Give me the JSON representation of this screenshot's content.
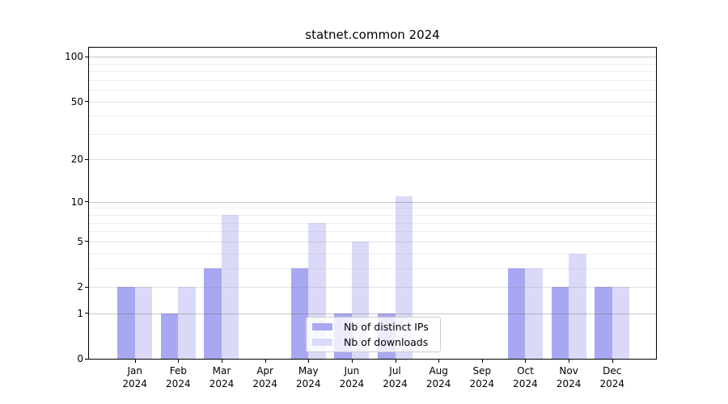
{
  "title": "statnet.common 2024",
  "chart_data": {
    "type": "bar",
    "title": "statnet.common 2024",
    "x_axis": {
      "months": [
        "Jan",
        "Feb",
        "Mar",
        "Apr",
        "May",
        "Jun",
        "Jul",
        "Aug",
        "Sep",
        "Oct",
        "Nov",
        "Dec"
      ],
      "year": "2024"
    },
    "series": [
      {
        "name": "Nb of distinct IPs",
        "color": "#a8a8f2",
        "values": [
          2,
          1,
          3,
          0,
          3,
          1,
          1,
          0,
          0,
          3,
          2,
          2
        ]
      },
      {
        "name": "Nb of downloads",
        "color": "#dadaf8",
        "values": [
          2,
          2,
          8,
          0,
          7,
          5,
          11,
          0,
          0,
          3,
          4,
          2
        ]
      }
    ],
    "y_axis": {
      "scale": "log1p",
      "tick_labels": [
        0,
        1,
        2,
        5,
        10,
        20,
        50,
        100
      ],
      "major_gridlines": [
        1,
        10,
        100
      ],
      "mid_gridlines": [
        2,
        5,
        20,
        50
      ],
      "minor_gridlines": [
        3,
        4,
        6,
        7,
        8,
        9,
        30,
        40,
        60,
        70,
        80,
        90
      ]
    },
    "legend": {
      "position": "bottom-center",
      "items": [
        "Nb of distinct IPs",
        "Nb of downloads"
      ]
    },
    "grid": true
  },
  "colors": {
    "background": "#ffffff",
    "axis": "#000000",
    "grid_major": "rgba(90,90,90,0.35)",
    "grid_mid": "rgba(120,120,120,0.22)",
    "grid_minor": "rgba(140,140,140,0.14)",
    "legend_border": "#cccccc"
  }
}
